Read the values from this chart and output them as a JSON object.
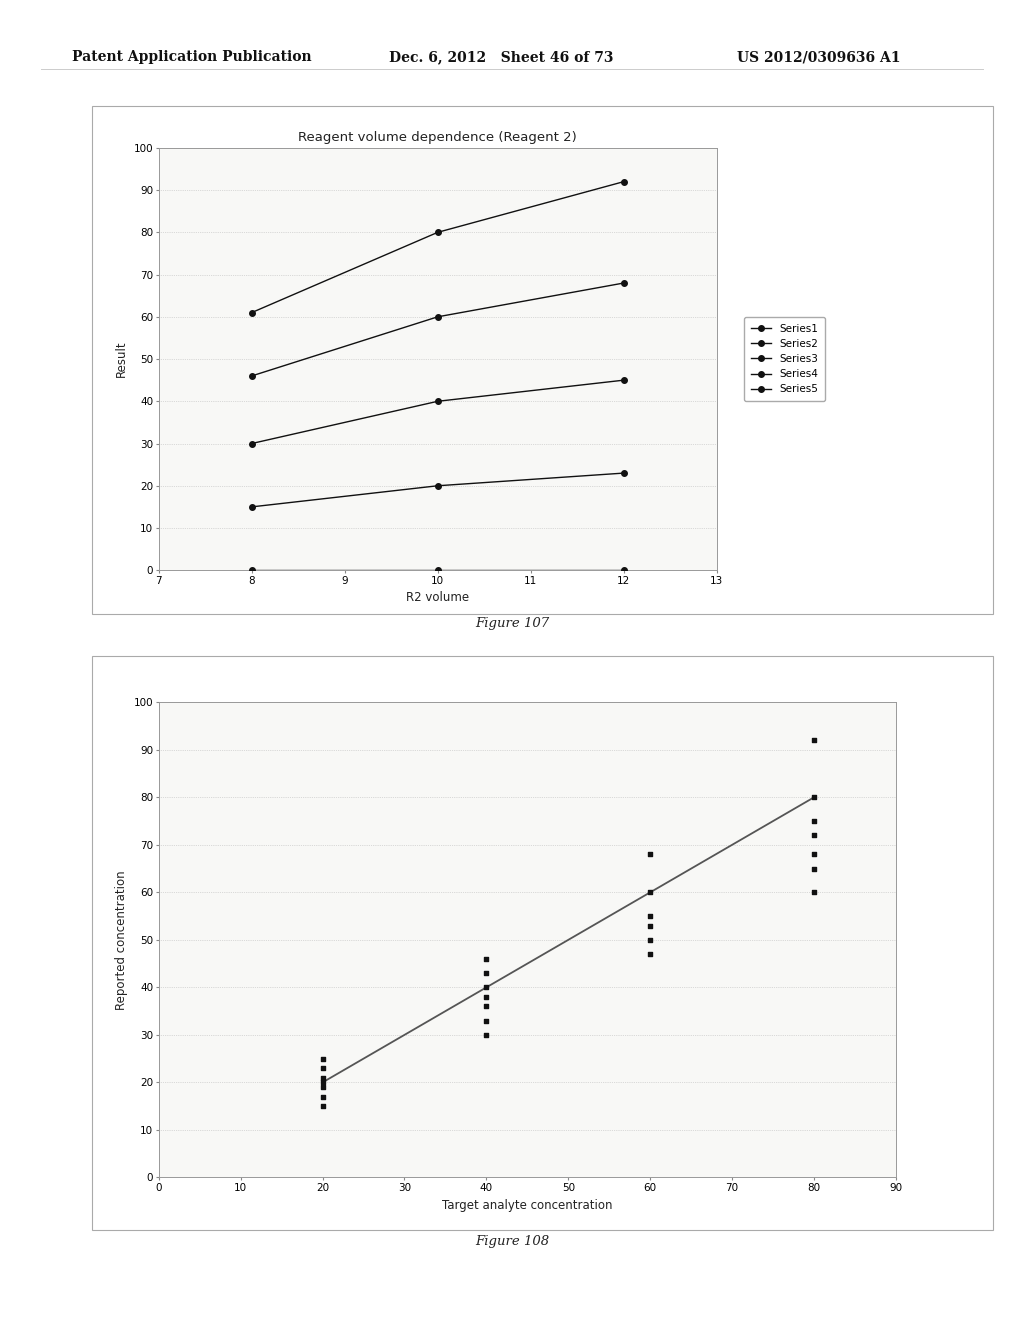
{
  "page_header": {
    "left": "Patent Application Publication",
    "center": "Dec. 6, 2012   Sheet 46 of 73",
    "right": "US 2012/0309636 A1"
  },
  "fig107": {
    "title": "Reagent volume dependence (Reagent 2)",
    "xlabel": "R2 volume",
    "ylabel": "Result",
    "xlim": [
      7,
      13
    ],
    "ylim": [
      0,
      100
    ],
    "xticks": [
      7,
      8,
      9,
      10,
      11,
      12,
      13
    ],
    "yticks": [
      0,
      10,
      20,
      30,
      40,
      50,
      60,
      70,
      80,
      90,
      100
    ],
    "series": [
      {
        "name": "Series1",
        "x": [
          8,
          10,
          12
        ],
        "y": [
          0,
          0,
          0
        ]
      },
      {
        "name": "Series2",
        "x": [
          8,
          10,
          12
        ],
        "y": [
          15,
          20,
          23
        ]
      },
      {
        "name": "Series3",
        "x": [
          8,
          10,
          12
        ],
        "y": [
          30,
          40,
          45
        ]
      },
      {
        "name": "Series4",
        "x": [
          8,
          10,
          12
        ],
        "y": [
          46,
          60,
          68
        ]
      },
      {
        "name": "Series5",
        "x": [
          8,
          10,
          12
        ],
        "y": [
          61,
          80,
          92
        ]
      }
    ],
    "figure_label": "Figure 107"
  },
  "fig108": {
    "xlabel": "Target analyte concentration",
    "ylabel": "Reported concentration",
    "xlim": [
      0,
      90
    ],
    "ylim": [
      0,
      100
    ],
    "xticks": [
      0,
      10,
      20,
      30,
      40,
      50,
      60,
      70,
      80,
      90
    ],
    "yticks": [
      0,
      10,
      20,
      30,
      40,
      50,
      60,
      70,
      80,
      90,
      100
    ],
    "scatter_x": [
      20,
      20,
      20,
      20,
      20,
      20,
      20,
      40,
      40,
      40,
      40,
      40,
      40,
      40,
      60,
      60,
      60,
      60,
      60,
      60,
      80,
      80,
      80,
      80,
      80,
      80,
      80
    ],
    "scatter_y": [
      15,
      17,
      19,
      20,
      21,
      23,
      25,
      30,
      33,
      36,
      38,
      40,
      43,
      46,
      47,
      50,
      53,
      55,
      60,
      68,
      60,
      65,
      68,
      72,
      75,
      80,
      92
    ],
    "line_x": [
      20,
      80
    ],
    "line_y": [
      20,
      80
    ],
    "figure_label": "Figure 108"
  },
  "background_color": "#ffffff",
  "chart_bg": "#f8f8f6",
  "border_color": "#999999",
  "text_color": "#222222",
  "marker_color": "#111111",
  "line_color": "#555555"
}
